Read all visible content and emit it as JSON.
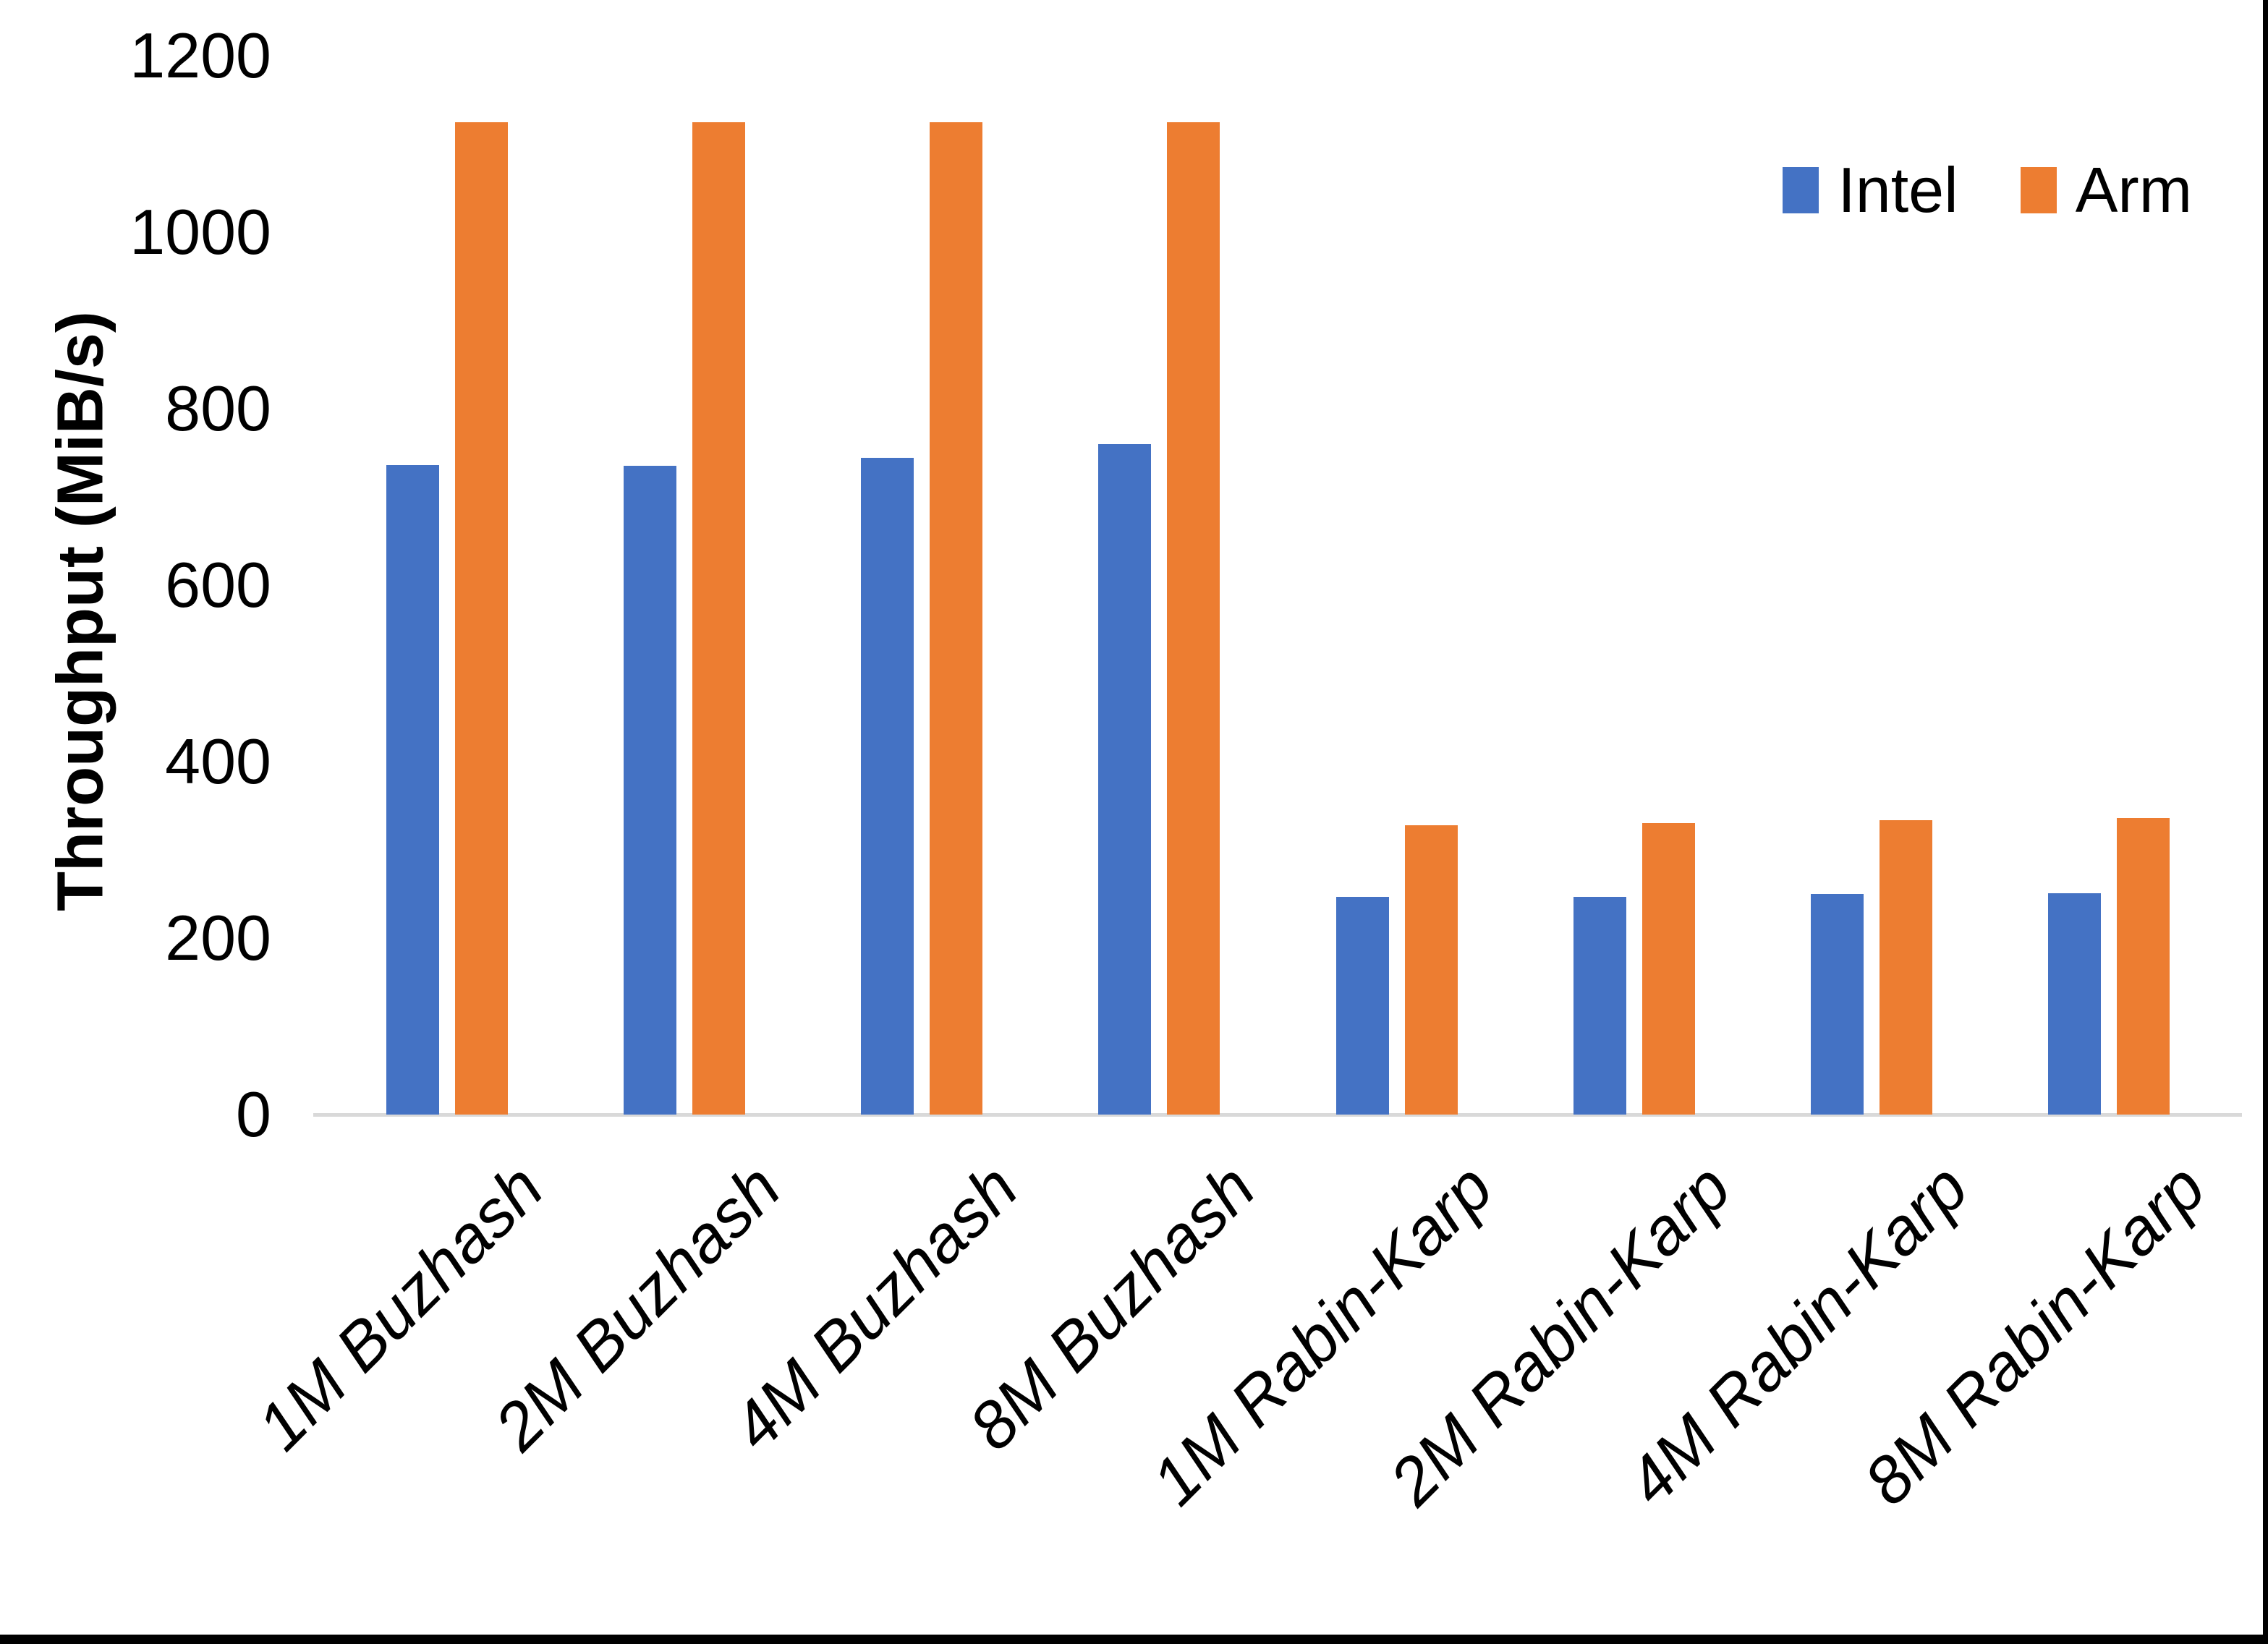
{
  "chart_data": {
    "type": "bar",
    "title": "",
    "xlabel": "",
    "ylabel": "Throughput (MiB/s)",
    "categories": [
      "1M Buzhash",
      "2M Buzhash",
      "4M Buzhash",
      "8M Buzhash",
      "1M Rabin-Karp",
      "2M Rabin-Karp",
      "4M Rabin-Karp",
      "8M Rabin-Karp"
    ],
    "series": [
      {
        "name": "Intel",
        "color": "#4472C4",
        "values": [
          736,
          735,
          744,
          760,
          247,
          247,
          250,
          251
        ]
      },
      {
        "name": "Arm",
        "color": "#ED7D31",
        "values": [
          1125,
          1125,
          1125,
          1125,
          328,
          330,
          334,
          336
        ]
      }
    ],
    "ylim": [
      0,
      1200
    ],
    "y_ticks": [
      0,
      200,
      400,
      600,
      800,
      1000,
      1200
    ],
    "grid": false,
    "legend_position": "top-right",
    "x_label_rotation_deg": -45,
    "x_label_style": "italic"
  },
  "legend": {
    "items": [
      {
        "label": "Intel",
        "color": "#4472C4"
      },
      {
        "label": "Arm",
        "color": "#ED7D31"
      }
    ]
  },
  "colors": {
    "axis_line": "#D9D9D9",
    "text": "#000000",
    "frame_border": "#000000",
    "background": "#FFFFFF"
  }
}
